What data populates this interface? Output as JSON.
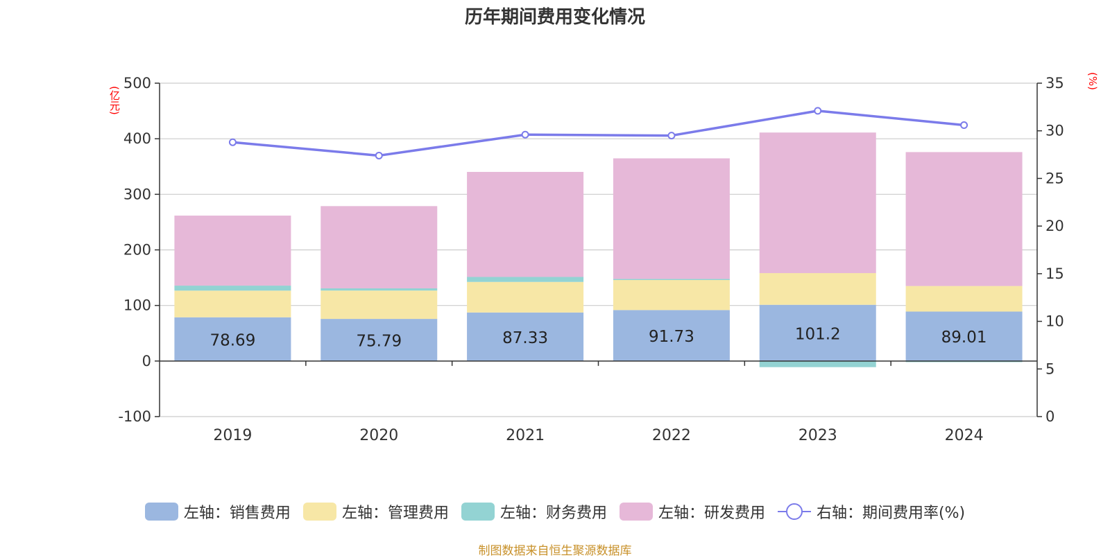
{
  "title": "历年期间费用变化情况",
  "left_unit": "(亿元)",
  "right_unit": "(%)",
  "source": "制图数据来自恒生聚源数据库",
  "colors": {
    "sales": "#9bb7e0",
    "admin": "#f7e7a6",
    "finance": "#93d3d3",
    "rnd": "#e6b8d8",
    "rate": "#7b7bea"
  },
  "legend": [
    {
      "label": "左轴：销售费用",
      "color": "#9bb7e0",
      "kind": "bar"
    },
    {
      "label": "左轴：管理费用",
      "color": "#f7e7a6",
      "kind": "bar"
    },
    {
      "label": "左轴：财务费用",
      "color": "#93d3d3",
      "kind": "bar"
    },
    {
      "label": "左轴：研发费用",
      "color": "#e6b8d8",
      "kind": "bar"
    },
    {
      "label": "右轴：期间费用率(%)",
      "color": "#7b7bea",
      "kind": "line"
    }
  ],
  "chart_data": {
    "type": "bar",
    "stacked": true,
    "title": "历年期间费用变化情况",
    "categories": [
      "2019",
      "2020",
      "2021",
      "2022",
      "2023",
      "2024"
    ],
    "y_left": {
      "label": "(亿元)",
      "ylim": [
        -100,
        500
      ],
      "ticks": [
        -100,
        0,
        100,
        200,
        300,
        400,
        500
      ]
    },
    "y_right": {
      "label": "(%)",
      "ylim": [
        0,
        35
      ],
      "ticks": [
        0,
        5,
        10,
        15,
        20,
        25,
        30,
        35
      ]
    },
    "grid": true,
    "legend_position": "bottom",
    "series": [
      {
        "name": "左轴：销售费用",
        "axis": "left",
        "values": [
          78.69,
          75.79,
          87.33,
          91.73,
          101.2,
          89.01
        ],
        "data_labels": [
          "78.69",
          "75.79",
          "87.33",
          "91.73",
          "101.2",
          "89.01"
        ]
      },
      {
        "name": "左轴：管理费用",
        "axis": "left",
        "values": [
          48,
          51,
          55,
          54,
          57,
          46
        ]
      },
      {
        "name": "左轴：财务费用",
        "axis": "left",
        "values": [
          9,
          4,
          9,
          2,
          -11,
          -2
        ]
      },
      {
        "name": "左轴：研发费用",
        "axis": "left",
        "values": [
          126,
          148,
          189,
          217,
          253,
          241
        ]
      },
      {
        "name": "右轴：期间费用率(%)",
        "axis": "right",
        "type": "line",
        "values": [
          28.8,
          27.4,
          29.6,
          29.5,
          32.1,
          30.6
        ]
      }
    ]
  }
}
